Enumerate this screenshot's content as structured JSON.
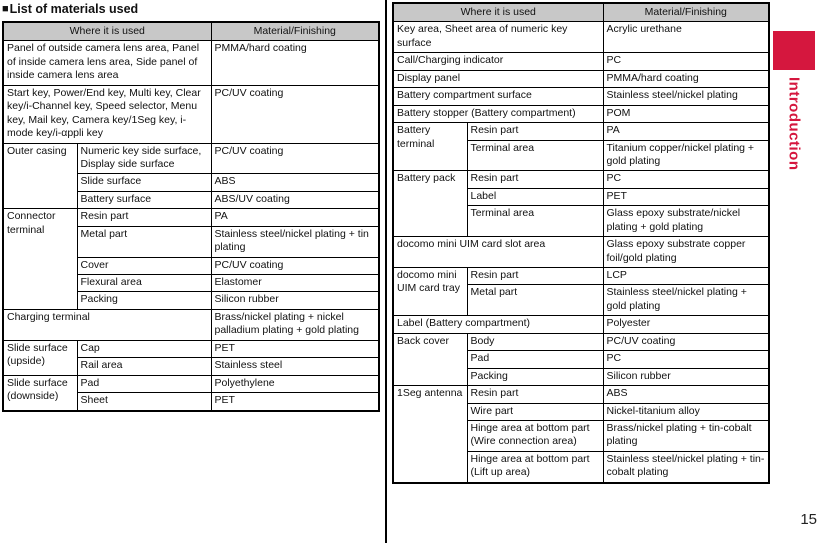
{
  "page": {
    "section_title": {
      "bullet": "■",
      "text": "List of materials used"
    },
    "side_tab": {
      "label": "Introduction"
    },
    "page_number": "15",
    "colors": {
      "accent": "#d5173e",
      "header_bg": "#c8c8c8",
      "border": "#000000"
    }
  },
  "left_table": {
    "headers": [
      "Where it is used",
      "Material/Finishing"
    ],
    "rows": [
      {
        "where": "Panel of outside camera lens area, Panel of inside camera lens area, Side panel of inside camera lens area",
        "material": "PMMA/hard coating"
      },
      {
        "where": "Start key, Power/End key, Multi key, Clear key/i-Channel key, Speed selector, Menu key, Mail key, Camera key/1Seg key, i-mode key/i-αppli key",
        "material": "PC/UV coating"
      },
      {
        "group": "Outer casing",
        "items": [
          {
            "part": "Numeric key side surface, Display side surface",
            "material": "PC/UV coating"
          },
          {
            "part": "Slide surface",
            "material": "ABS"
          },
          {
            "part": "Battery surface",
            "material": "ABS/UV coating"
          }
        ]
      },
      {
        "group": "Connector terminal",
        "items": [
          {
            "part": "Resin part",
            "material": "PA"
          },
          {
            "part": "Metal part",
            "material": "Stainless steel/nickel plating + tin plating"
          },
          {
            "part": "Cover",
            "material": "PC/UV coating"
          },
          {
            "part": "Flexural area",
            "material": "Elastomer"
          },
          {
            "part": "Packing",
            "material": "Silicon rubber"
          }
        ]
      },
      {
        "where": "Charging terminal",
        "material": "Brass/nickel plating + nickel palladium plating + gold plating"
      },
      {
        "group": "Slide surface (upside)",
        "items": [
          {
            "part": "Cap",
            "material": "PET"
          },
          {
            "part": "Rail area",
            "material": "Stainless steel"
          }
        ]
      },
      {
        "group": "Slide surface (downside)",
        "items": [
          {
            "part": "Pad",
            "material": "Polyethylene"
          },
          {
            "part": "Sheet",
            "material": "PET"
          }
        ]
      }
    ]
  },
  "right_table": {
    "headers": [
      "Where it is used",
      "Material/Finishing"
    ],
    "rows": [
      {
        "where": "Key area, Sheet area of numeric key surface",
        "material": "Acrylic urethane"
      },
      {
        "where": "Call/Charging indicator",
        "material": "PC"
      },
      {
        "where": "Display panel",
        "material": "PMMA/hard coating"
      },
      {
        "where": "Battery compartment surface",
        "material": "Stainless steel/nickel plating"
      },
      {
        "where": "Battery stopper (Battery compartment)",
        "material": "POM"
      },
      {
        "group": "Battery terminal",
        "items": [
          {
            "part": "Resin part",
            "material": "PA"
          },
          {
            "part": "Terminal area",
            "material": "Titanium copper/nickel plating + gold plating"
          }
        ]
      },
      {
        "group": "Battery pack",
        "items": [
          {
            "part": "Resin part",
            "material": "PC"
          },
          {
            "part": "Label",
            "material": "PET"
          },
          {
            "part": "Terminal area",
            "material": "Glass epoxy substrate/nickel plating + gold plating"
          }
        ]
      },
      {
        "where": "docomo mini UIM card slot area",
        "material": "Glass epoxy substrate copper foil/gold plating"
      },
      {
        "group": "docomo mini UIM card tray",
        "items": [
          {
            "part": "Resin part",
            "material": "LCP"
          },
          {
            "part": "Metal part",
            "material": "Stainless steel/nickel plating + gold plating"
          }
        ]
      },
      {
        "where": "Label (Battery compartment)",
        "material": "Polyester"
      },
      {
        "group": "Back cover",
        "items": [
          {
            "part": "Body",
            "material": "PC/UV coating"
          },
          {
            "part": "Pad",
            "material": "PC"
          },
          {
            "part": "Packing",
            "material": "Silicon rubber"
          }
        ]
      },
      {
        "group": "1Seg antenna",
        "items": [
          {
            "part": "Resin part",
            "material": "ABS"
          },
          {
            "part": "Wire part",
            "material": "Nickel-titanium alloy"
          },
          {
            "part": "Hinge area at bottom part (Wire connection area)",
            "material": "Brass/nickel plating + tin-cobalt plating"
          },
          {
            "part": "Hinge area at bottom part (Lift up area)",
            "material": "Stainless steel/nickel plating + tin-cobalt plating"
          }
        ]
      }
    ]
  }
}
